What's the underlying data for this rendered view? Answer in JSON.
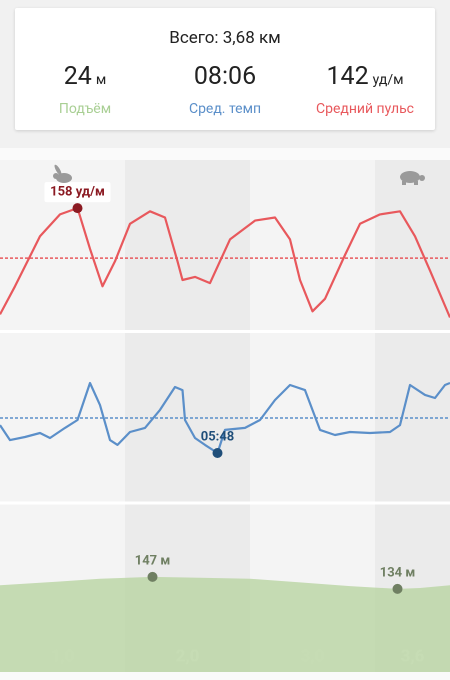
{
  "summary": {
    "total": "Всего: 3,68 км",
    "stats": [
      {
        "value": "24",
        "unit": "м",
        "label": "Подъём"
      },
      {
        "value": "08:06",
        "label": "Сред. темп"
      },
      {
        "value": "142",
        "unit": "уд/м",
        "label": "Средний пульс"
      }
    ]
  },
  "chart_data": [
    {
      "type": "line",
      "color": "#e8585c",
      "xlim": [
        0,
        3.6
      ],
      "ylim": [
        119,
        173.4
      ],
      "average": 142,
      "x": [
        0,
        0.12,
        0.32,
        0.48,
        0.62,
        0.72,
        0.82,
        0.92,
        1.04,
        1.2,
        1.32,
        1.42,
        1.46,
        1.56,
        1.68,
        1.84,
        2.04,
        2.2,
        2.32,
        2.4,
        2.5,
        2.6,
        2.76,
        2.88,
        3.04,
        3.2,
        3.32,
        3.44,
        3.6
      ],
      "values": [
        124,
        133,
        149,
        156,
        158,
        145,
        133,
        141,
        153,
        157,
        155,
        141,
        135,
        136,
        134,
        148,
        154,
        155,
        148,
        135,
        125,
        129,
        143,
        153,
        156,
        157,
        149,
        138,
        123
      ],
      "annotations": [
        {
          "x": 0.62,
          "value": 158,
          "label": "158 уд/м",
          "color": "#8b1a22"
        }
      ]
    },
    {
      "type": "line",
      "color": "#5b8fc9",
      "xlim": [
        0,
        3.6
      ],
      "ylim": [
        151,
        821
      ],
      "average": 486,
      "x": [
        0,
        0.08,
        0.2,
        0.32,
        0.4,
        0.52,
        0.62,
        0.72,
        0.8,
        0.88,
        0.94,
        1.04,
        1.16,
        1.28,
        1.4,
        1.46,
        1.48,
        1.56,
        1.64,
        1.74,
        1.8,
        1.96,
        2.08,
        2.2,
        2.32,
        2.44,
        2.56,
        2.68,
        2.8,
        2.96,
        3.12,
        3.2,
        3.28,
        3.4,
        3.48,
        3.56,
        3.6
      ],
      "values": [
        458,
        399,
        411,
        427,
        407,
        447,
        478,
        624,
        537,
        399,
        380,
        431,
        447,
        518,
        608,
        596,
        478,
        407,
        380,
        348,
        439,
        447,
        478,
        557,
        616,
        596,
        439,
        419,
        431,
        427,
        431,
        458,
        616,
        577,
        565,
        616,
        624
      ],
      "annotations": [
        {
          "x": 1.74,
          "value": 348,
          "label": "05:48",
          "color": "#1f4e79"
        }
      ]
    },
    {
      "type": "area",
      "color": "#bcd6a7",
      "xlim": [
        0,
        3.6
      ],
      "ylim": [
        44,
        227
      ],
      "x": [
        0,
        0.48,
        0.8,
        1.22,
        1.6,
        2,
        2.4,
        2.8,
        3.18,
        3.36,
        3.6
      ],
      "values": [
        138,
        142,
        145,
        147,
        146,
        145,
        141,
        137,
        134,
        135,
        138
      ],
      "annotations": [
        {
          "x": 1.22,
          "value": 147,
          "label": "147 м",
          "color": "#6f7f62"
        },
        {
          "x": 3.18,
          "value": 134,
          "label": "134 м",
          "color": "#6f7f62"
        }
      ],
      "xticks": [
        {
          "value": 1,
          "label": "1,0"
        },
        {
          "value": 2,
          "label": "2,0"
        },
        {
          "value": 3,
          "label": "3,0"
        },
        {
          "value": 3.6,
          "label": "3,6"
        }
      ]
    }
  ]
}
